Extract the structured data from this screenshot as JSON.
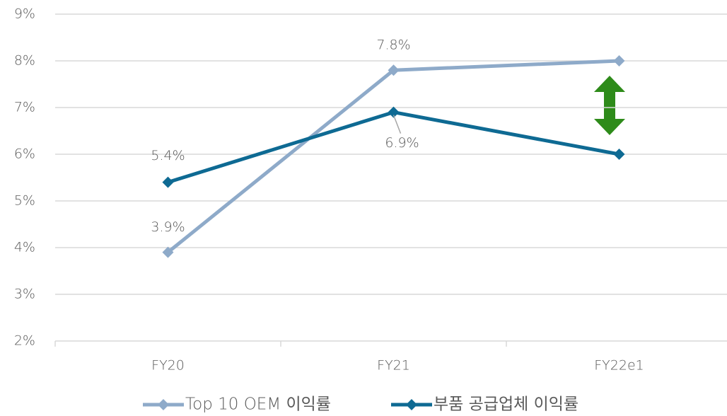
{
  "chart_data": {
    "type": "line",
    "categories": [
      "FY20",
      "FY21",
      "FY22e1"
    ],
    "series": [
      {
        "name": "Top 10 OEM 이익률",
        "color": "#8eaac9",
        "values": [
          3.9,
          7.8,
          8.0
        ],
        "value_labels": [
          "3.9%",
          "7.8%",
          null
        ]
      },
      {
        "name": "부품 공급업체 이익률",
        "color": "#0e6a93",
        "values": [
          5.4,
          6.9,
          6.0
        ],
        "value_labels": [
          "5.4%",
          "6.9%",
          null
        ]
      }
    ],
    "ylim": [
      2,
      9
    ],
    "yticks": [
      {
        "value": 2,
        "label": "2%"
      },
      {
        "value": 3,
        "label": "3%"
      },
      {
        "value": 4,
        "label": "4%"
      },
      {
        "value": 5,
        "label": "5%"
      },
      {
        "value": 6,
        "label": "6%"
      },
      {
        "value": 7,
        "label": "7%"
      },
      {
        "value": 8,
        "label": "8%"
      },
      {
        "value": 9,
        "label": "9%"
      }
    ],
    "grid": true,
    "legend": "bottom"
  }
}
